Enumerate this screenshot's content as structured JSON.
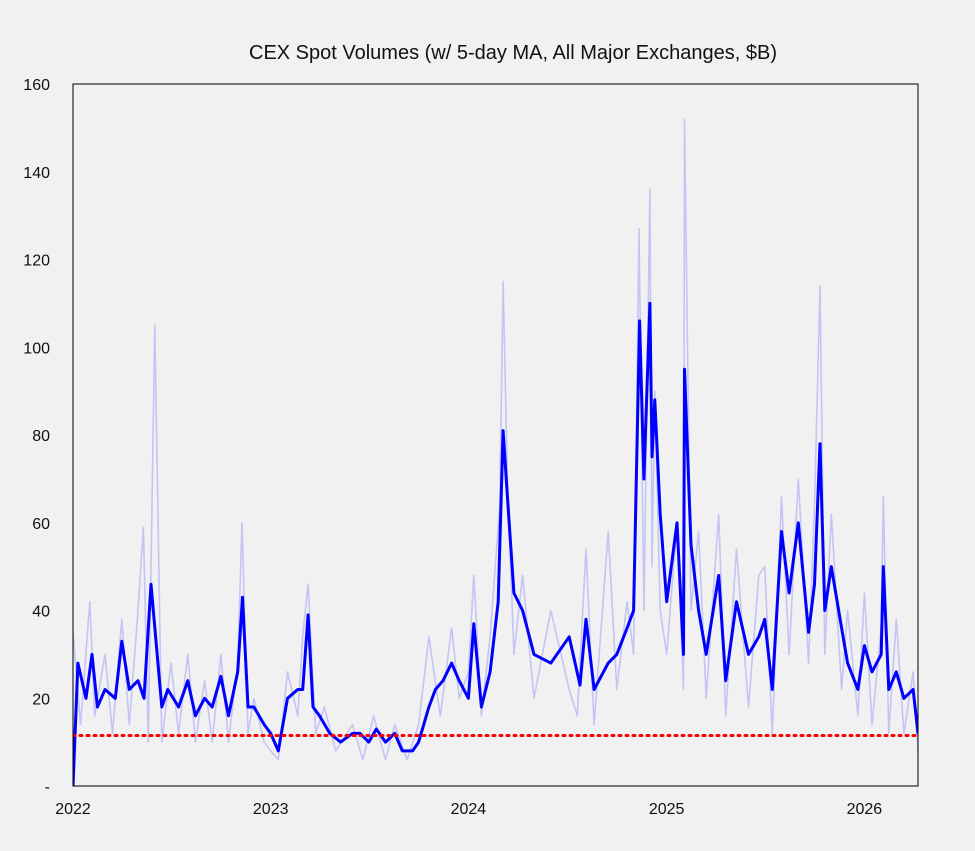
{
  "chart_data": {
    "type": "line",
    "title": "CEX Spot Volumes (w/ 5-day MA, All Major Exchanges, $B)",
    "xlabel": "",
    "ylabel": "",
    "x_ticks": [
      "2022",
      "2023",
      "2024",
      "2025",
      "2026"
    ],
    "y_ticks": [
      "-",
      "20",
      "40",
      "60",
      "80",
      "100",
      "120",
      "140",
      "160"
    ],
    "x_range": [
      "2022-01-01",
      "2026-04-10"
    ],
    "ylim": [
      0,
      160
    ],
    "grid": false,
    "legend": "none",
    "colors": {
      "ma": "#0000ff",
      "daily": "#c4c4f5",
      "threshold": "#ff0000",
      "background": "#f2f1f1"
    },
    "reference_line": {
      "y": 11.5,
      "style": "dotted"
    },
    "series": [
      {
        "role": "5-day moving average",
        "x": [
          "2022-01-01",
          "2022-01-10",
          "2022-01-25",
          "2022-02-05",
          "2022-02-15",
          "2022-03-01",
          "2022-03-20",
          "2022-04-01",
          "2022-04-15",
          "2022-05-01",
          "2022-05-12",
          "2022-05-25",
          "2022-06-14",
          "2022-06-25",
          "2022-07-15",
          "2022-08-01",
          "2022-08-15",
          "2022-09-01",
          "2022-09-15",
          "2022-10-01",
          "2022-10-15",
          "2022-11-01",
          "2022-11-10",
          "2022-11-20",
          "2022-12-01",
          "2022-12-20",
          "2023-01-01",
          "2023-01-15",
          "2023-02-01",
          "2023-02-20",
          "2023-03-01",
          "2023-03-11",
          "2023-03-20",
          "2023-04-01",
          "2023-04-20",
          "2023-05-10",
          "2023-06-01",
          "2023-06-15",
          "2023-07-01",
          "2023-07-15",
          "2023-08-01",
          "2023-08-18",
          "2023-09-01",
          "2023-09-20",
          "2023-10-01",
          "2023-10-20",
          "2023-11-01",
          "2023-11-15",
          "2023-12-01",
          "2023-12-15",
          "2024-01-01",
          "2024-01-11",
          "2024-01-25",
          "2024-02-10",
          "2024-02-25",
          "2024-03-05",
          "2024-03-13",
          "2024-03-25",
          "2024-04-10",
          "2024-05-01",
          "2024-06-01",
          "2024-07-05",
          "2024-07-25",
          "2024-08-05",
          "2024-08-20",
          "2024-09-15",
          "2024-10-01",
          "2024-10-20",
          "2024-11-01",
          "2024-11-12",
          "2024-11-20",
          "2024-12-01",
          "2024-12-05",
          "2024-12-10",
          "2024-12-20",
          "2025-01-01",
          "2025-01-20",
          "2025-02-01",
          "2025-02-03",
          "2025-02-15",
          "2025-03-01",
          "2025-03-15",
          "2025-04-07",
          "2025-04-20",
          "2025-05-10",
          "2025-06-01",
          "2025-06-20",
          "2025-07-01",
          "2025-07-15",
          "2025-08-01",
          "2025-08-15",
          "2025-09-01",
          "2025-09-20",
          "2025-10-01",
          "2025-10-11",
          "2025-10-20",
          "2025-11-01",
          "2025-11-20",
          "2025-12-01",
          "2025-12-20",
          "2026-01-01",
          "2026-01-15",
          "2026-02-01",
          "2026-02-05",
          "2026-02-15",
          "2026-03-01",
          "2026-03-15",
          "2026-04-01",
          "2026-04-10"
        ],
        "y": [
          0,
          28,
          20,
          30,
          18,
          22,
          20,
          33,
          22,
          24,
          20,
          46,
          18,
          22,
          18,
          24,
          16,
          20,
          18,
          25,
          16,
          26,
          43,
          18,
          18,
          14,
          12,
          8,
          20,
          22,
          22,
          39,
          18,
          16,
          12,
          10,
          12,
          12,
          10,
          13,
          10,
          12,
          8,
          8,
          10,
          18,
          22,
          24,
          28,
          24,
          20,
          37,
          18,
          26,
          42,
          81,
          66,
          44,
          40,
          30,
          28,
          34,
          23,
          38,
          22,
          28,
          30,
          36,
          40,
          106,
          70,
          110,
          75,
          88,
          62,
          42,
          60,
          30,
          95,
          55,
          40,
          30,
          48,
          24,
          42,
          30,
          34,
          38,
          22,
          58,
          44,
          60,
          35,
          46,
          78,
          40,
          50,
          36,
          28,
          22,
          32,
          26,
          30,
          50,
          22,
          26,
          20,
          22,
          12
        ]
      },
      {
        "role": "daily volume",
        "x": [
          "2022-01-01",
          "2022-01-15",
          "2022-02-01",
          "2022-02-10",
          "2022-03-01",
          "2022-03-15",
          "2022-04-01",
          "2022-04-15",
          "2022-05-01",
          "2022-05-11",
          "2022-05-20",
          "2022-06-01",
          "2022-06-14",
          "2022-07-01",
          "2022-07-15",
          "2022-08-01",
          "2022-08-15",
          "2022-09-01",
          "2022-09-15",
          "2022-10-01",
          "2022-10-15",
          "2022-11-01",
          "2022-11-09",
          "2022-11-20",
          "2022-12-01",
          "2022-12-20",
          "2023-01-01",
          "2023-01-15",
          "2023-02-01",
          "2023-02-20",
          "2023-03-01",
          "2023-03-11",
          "2023-03-25",
          "2023-04-10",
          "2023-05-01",
          "2023-06-01",
          "2023-06-20",
          "2023-07-10",
          "2023-08-01",
          "2023-08-18",
          "2023-09-10",
          "2023-10-01",
          "2023-10-20",
          "2023-11-10",
          "2023-12-01",
          "2023-12-15",
          "2024-01-01",
          "2024-01-11",
          "2024-01-25",
          "2024-02-10",
          "2024-02-28",
          "2024-03-05",
          "2024-03-13",
          "2024-03-25",
          "2024-04-10",
          "2024-05-01",
          "2024-06-01",
          "2024-07-05",
          "2024-07-20",
          "2024-08-05",
          "2024-08-20",
          "2024-09-15",
          "2024-10-01",
          "2024-10-20",
          "2024-11-01",
          "2024-11-11",
          "2024-11-20",
          "2024-12-01",
          "2024-12-05",
          "2024-12-10",
          "2024-12-20",
          "2025-01-01",
          "2025-01-20",
          "2025-02-01",
          "2025-02-03",
          "2025-02-15",
          "2025-03-01",
          "2025-03-15",
          "2025-04-07",
          "2025-04-20",
          "2025-05-10",
          "2025-06-01",
          "2025-06-20",
          "2025-07-01",
          "2025-07-15",
          "2025-08-01",
          "2025-08-15",
          "2025-09-01",
          "2025-09-20",
          "2025-10-01",
          "2025-10-11",
          "2025-10-20",
          "2025-11-01",
          "2025-11-20",
          "2025-12-01",
          "2025-12-20",
          "2026-01-01",
          "2026-01-15",
          "2026-02-01",
          "2026-02-05",
          "2026-02-15",
          "2026-03-01",
          "2026-03-15",
          "2026-04-01",
          "2026-04-10"
        ],
        "y": [
          35,
          14,
          42,
          16,
          30,
          12,
          38,
          14,
          40,
          59,
          10,
          105,
          10,
          28,
          12,
          30,
          10,
          24,
          10,
          30,
          10,
          28,
          60,
          12,
          20,
          10,
          8,
          6,
          26,
          16,
          34,
          46,
          12,
          18,
          8,
          14,
          6,
          16,
          6,
          14,
          6,
          14,
          34,
          16,
          36,
          20,
          26,
          48,
          16,
          34,
          64,
          115,
          70,
          30,
          48,
          20,
          40,
          22,
          16,
          54,
          14,
          58,
          22,
          42,
          30,
          127,
          40,
          136,
          50,
          90,
          40,
          30,
          60,
          22,
          152,
          40,
          58,
          20,
          62,
          16,
          54,
          18,
          48,
          50,
          12,
          66,
          30,
          70,
          28,
          64,
          114,
          30,
          62,
          22,
          40,
          16,
          44,
          14,
          36,
          66,
          12,
          38,
          12,
          26,
          8
        ]
      }
    ]
  }
}
